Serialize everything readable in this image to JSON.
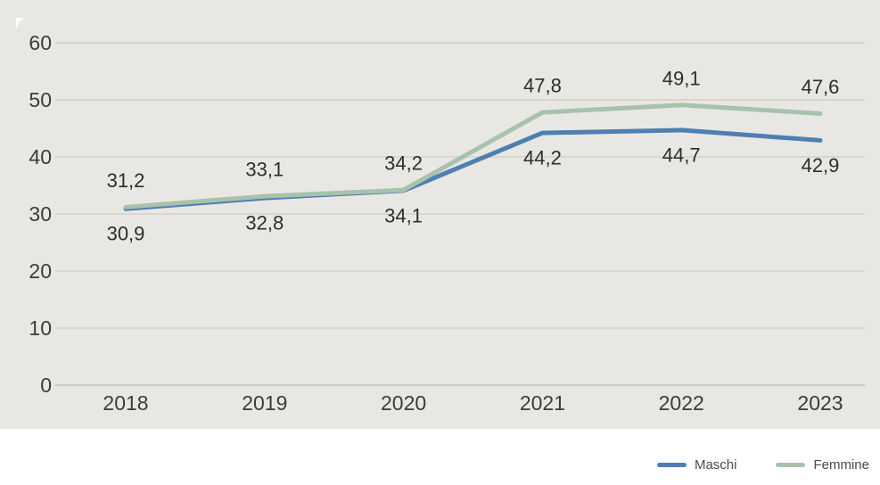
{
  "chart_data": {
    "type": "line",
    "title": "",
    "categories": [
      "2018",
      "2019",
      "2020",
      "2021",
      "2022",
      "2023"
    ],
    "series": [
      {
        "name": "Maschi",
        "color": "#4e7fb1",
        "values": [
          30.9,
          32.8,
          34.1,
          44.2,
          44.7,
          42.9
        ],
        "labels": [
          "30,9",
          "32,8",
          "34,1",
          "44,2",
          "44,7",
          "42,9"
        ],
        "label_position": "below"
      },
      {
        "name": "Femmine",
        "color": "#a8c2ac",
        "values": [
          31.2,
          33.1,
          34.2,
          47.8,
          49.1,
          47.6
        ],
        "labels": [
          "31,2",
          "33,1",
          "34,2",
          "47,8",
          "49,1",
          "47,6"
        ],
        "label_position": "above"
      }
    ],
    "xlabel": "",
    "ylabel": "",
    "ylim": [
      0,
      60
    ],
    "ytick_step": 10,
    "yticks": [
      "0",
      "10",
      "20",
      "30",
      "40",
      "50",
      "60"
    ],
    "grid": true,
    "legend_position": "bottom-right"
  },
  "colors": {
    "plot_background": "#e9e7e4",
    "page_background": "#ffffff",
    "gridline": "#d9d6d2",
    "axis_line": "#cbc8c4",
    "tick_text": "#3c3c3c",
    "data_label_text": "#2d2d2d",
    "legend_text": "#4a4a4a"
  }
}
